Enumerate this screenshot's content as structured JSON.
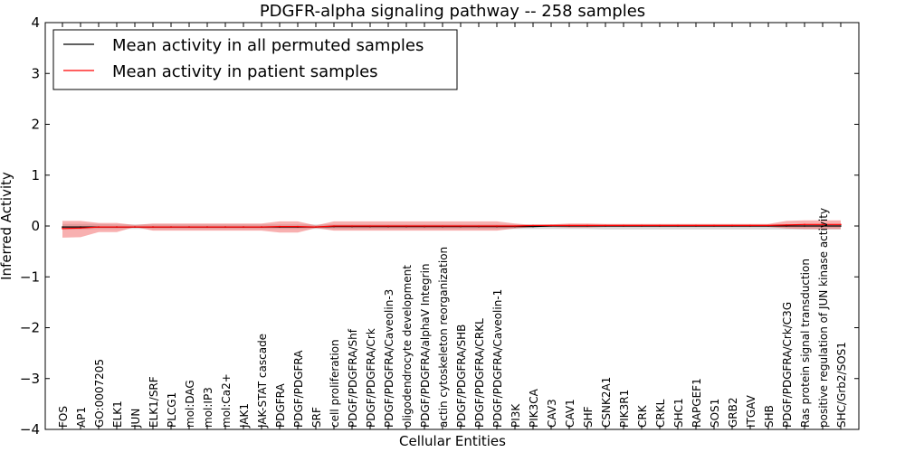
{
  "chart_data": {
    "type": "line",
    "title": "PDGFR-alpha signaling pathway -- 258 samples",
    "xlabel": "Cellular Entities",
    "ylabel": "Inferred Activity",
    "ylim": [
      -4,
      4
    ],
    "yticks": [
      -4,
      -3,
      -2,
      -1,
      0,
      1,
      2,
      3,
      4
    ],
    "ytick_labels": [
      "−4",
      "−3",
      "−2",
      "−1",
      "0",
      "1",
      "2",
      "3",
      "4"
    ],
    "grid": false,
    "legend_position": "top-left",
    "categories": [
      "FOS",
      "AP1",
      "GO:0007205",
      "ELK1",
      "JUN",
      "ELK1/SRF",
      "PLCG1",
      "mol:DAG",
      "mol:IP3",
      "mol:Ca2+",
      "JAK1",
      "JAK-STAT cascade",
      "PDGFRA",
      "PDGF/PDGFRA",
      "SRF",
      "cell proliferation",
      "PDGF/PDGFRA/Shf",
      "PDGF/PDGFRA/Crk",
      "PDGF/PDGFRA/Caveolin-3",
      "oligodendrocyte development",
      "PDGF/PDGFRA/alphaV Integrin",
      "actin cytoskeleton reorganization",
      "PDGF/PDGFRA/SHB",
      "PDGF/PDGFRA/CRKL",
      "PDGF/PDGFRA/Caveolin-1",
      "PI3K",
      "PIK3CA",
      "CAV3",
      "CAV1",
      "SHF",
      "CSNK2A1",
      "PIK3R1",
      "CRK",
      "CRKL",
      "SHC1",
      "RAPGEF1",
      "SOS1",
      "GRB2",
      "ITGAV",
      "SHB",
      "PDGF/PDGFRA/Crk/C3G",
      "Ras protein signal transduction",
      "positive regulation of JUN kinase activity",
      "SHC/Grb2/SOS1"
    ],
    "series": [
      {
        "name": "Mean activity in all permuted samples",
        "color": "#000000",
        "values": [
          -0.02,
          -0.02,
          -0.02,
          -0.02,
          -0.02,
          -0.02,
          -0.02,
          -0.02,
          -0.02,
          -0.02,
          -0.02,
          -0.02,
          -0.02,
          -0.02,
          -0.02,
          -0.01,
          -0.01,
          -0.01,
          -0.01,
          -0.01,
          -0.01,
          -0.01,
          -0.01,
          -0.01,
          -0.01,
          -0.01,
          -0.01,
          0,
          0,
          0,
          0,
          0,
          0,
          0,
          0,
          0,
          0,
          0,
          0,
          0,
          0,
          0,
          0,
          0
        ],
        "band_upper": [
          0.04,
          0.04,
          0.04,
          0.03,
          0.03,
          0.03,
          0.03,
          0.03,
          0.03,
          0.03,
          0.03,
          0.03,
          0.03,
          0.03,
          0.03,
          0.03,
          0.03,
          0.03,
          0.03,
          0.03,
          0.03,
          0.03,
          0.03,
          0.03,
          0.03,
          0.03,
          0.03,
          0.03,
          0.03,
          0.03,
          0.03,
          0.03,
          0.03,
          0.03,
          0.03,
          0.03,
          0.03,
          0.03,
          0.03,
          0.03,
          0.03,
          0.03,
          0.03,
          0.03
        ],
        "band_lower": [
          -0.07,
          -0.07,
          -0.06,
          -0.06,
          -0.06,
          -0.06,
          -0.06,
          -0.06,
          -0.06,
          -0.06,
          -0.06,
          -0.06,
          -0.06,
          -0.06,
          -0.06,
          -0.06,
          -0.06,
          -0.06,
          -0.06,
          -0.06,
          -0.06,
          -0.06,
          -0.06,
          -0.06,
          -0.06,
          -0.06,
          -0.06,
          -0.06,
          -0.06,
          -0.06,
          -0.07,
          -0.07,
          -0.07,
          -0.07,
          -0.07,
          -0.07,
          -0.07,
          -0.07,
          -0.07,
          -0.07,
          -0.07,
          -0.07,
          -0.07,
          -0.07
        ]
      },
      {
        "name": "Mean activity in patient samples",
        "color": "#ff0000",
        "values": [
          -0.05,
          -0.04,
          -0.02,
          -0.02,
          -0.02,
          -0.02,
          -0.02,
          -0.02,
          -0.02,
          -0.02,
          -0.02,
          -0.02,
          -0.01,
          -0.01,
          -0.02,
          0,
          0,
          0,
          0,
          0,
          0,
          0,
          0,
          0,
          0,
          0,
          0.01,
          0.01,
          0.01,
          0.01,
          0.01,
          0.01,
          0.01,
          0.01,
          0.01,
          0.01,
          0.01,
          0.01,
          0.01,
          0.01,
          0.02,
          0.03,
          0.03,
          0.03
        ],
        "band_upper": [
          0.1,
          0.1,
          0.06,
          0.06,
          0.02,
          0.05,
          0.05,
          0.05,
          0.05,
          0.05,
          0.05,
          0.05,
          0.09,
          0.09,
          0.01,
          0.09,
          0.09,
          0.09,
          0.09,
          0.09,
          0.09,
          0.09,
          0.09,
          0.09,
          0.09,
          0.05,
          0.02,
          0.03,
          0.05,
          0.05,
          0.04,
          0.04,
          0.04,
          0.04,
          0.04,
          0.04,
          0.04,
          0.04,
          0.04,
          0.04,
          0.1,
          0.11,
          0.11,
          0.11
        ],
        "band_lower": [
          -0.23,
          -0.22,
          -0.12,
          -0.12,
          -0.02,
          -0.09,
          -0.09,
          -0.09,
          -0.09,
          -0.09,
          -0.09,
          -0.09,
          -0.13,
          -0.13,
          -0.04,
          -0.09,
          -0.09,
          -0.09,
          -0.09,
          -0.09,
          -0.09,
          -0.09,
          -0.09,
          -0.09,
          -0.09,
          -0.05,
          -0.02,
          -0.02,
          -0.03,
          -0.03,
          -0.02,
          -0.02,
          -0.02,
          -0.02,
          -0.02,
          -0.02,
          -0.02,
          -0.02,
          -0.02,
          -0.02,
          -0.05,
          -0.06,
          -0.06,
          -0.06
        ]
      }
    ]
  }
}
